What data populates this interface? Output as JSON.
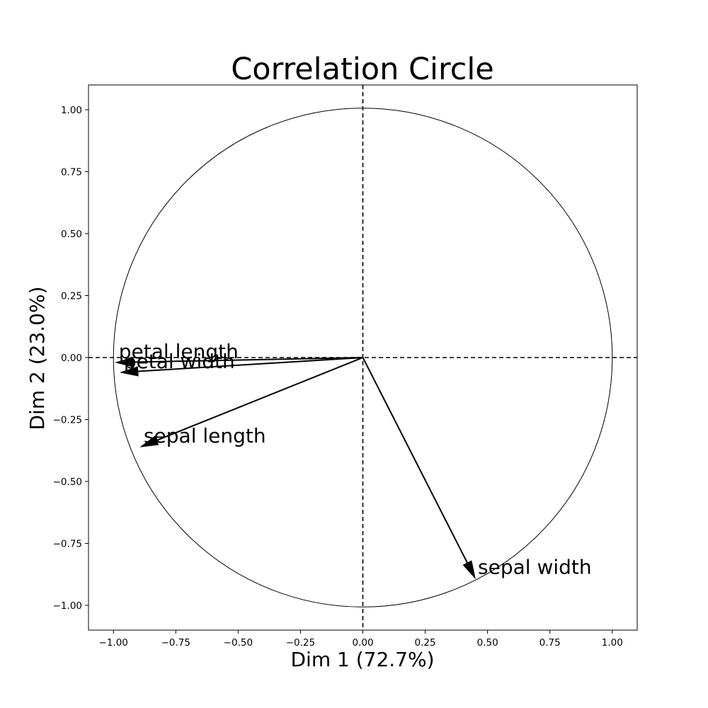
{
  "chart_data": {
    "type": "scatter",
    "title": "Correlation Circle",
    "xlabel": "Dim 1 (72.7%)",
    "ylabel": "Dim 2 (23.0%)",
    "xlim": [
      -1.1,
      1.1
    ],
    "ylim": [
      -1.1,
      1.1
    ],
    "grid": false,
    "unit_circle_radius": 1.0,
    "x_ticks": [
      -1.0,
      -0.75,
      -0.5,
      -0.25,
      0.0,
      0.25,
      0.5,
      0.75,
      1.0
    ],
    "y_ticks": [
      -1.0,
      -0.75,
      -0.5,
      -0.25,
      0.0,
      0.25,
      0.5,
      0.75,
      1.0
    ],
    "x_tick_labels": [
      "−1.00",
      "−0.75",
      "−0.50",
      "−0.25",
      "0.00",
      "0.25",
      "0.50",
      "0.75",
      "1.00"
    ],
    "y_tick_labels": [
      "−1.00",
      "−0.75",
      "−0.50",
      "−0.25",
      "0.00",
      "0.25",
      "0.50",
      "0.75",
      "1.00"
    ],
    "vectors": [
      {
        "name": "sepal length",
        "x": -0.89,
        "y": -0.36
      },
      {
        "name": "sepal width",
        "x": 0.45,
        "y": -0.89
      },
      {
        "name": "petal length",
        "x": -0.99,
        "y": -0.02
      },
      {
        "name": "petal width",
        "x": -0.97,
        "y": -0.06
      }
    ],
    "colors": {
      "vector": "#000000",
      "axes": "#000000",
      "circle": "#000000"
    }
  }
}
